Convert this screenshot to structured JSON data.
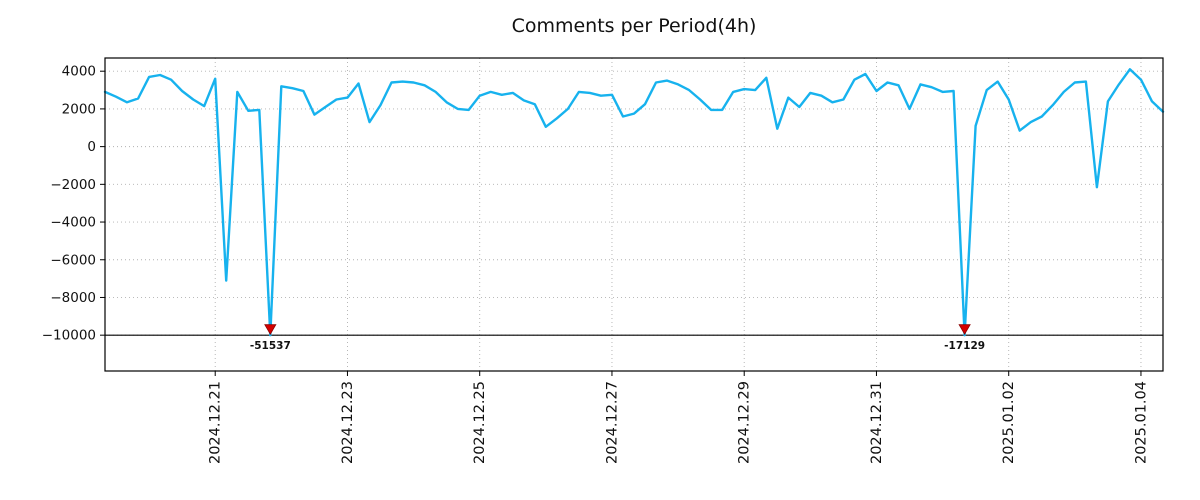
{
  "chart_data": {
    "type": "line",
    "title": "Comments per Period(4h)",
    "xlabel": "",
    "ylabel": "",
    "series_name": "comments-per-4h",
    "x_start": "2024-12-19 08:00",
    "x_interval_hours": 4,
    "values": [
      2900,
      2650,
      2350,
      2550,
      3700,
      3800,
      3550,
      2950,
      2500,
      2150,
      3600,
      -7100,
      2900,
      1900,
      1950,
      -51537,
      3200,
      3100,
      2950,
      1700,
      2100,
      2500,
      2600,
      3350,
      1300,
      2200,
      3400,
      3450,
      3400,
      3250,
      2900,
      2350,
      2000,
      1950,
      2700,
      2900,
      2750,
      2850,
      2450,
      2250,
      1050,
      1500,
      2000,
      2900,
      2850,
      2700,
      2750,
      1600,
      1750,
      2250,
      3400,
      3500,
      3300,
      3000,
      2500,
      1950,
      1950,
      2900,
      3050,
      3000,
      3650,
      950,
      2600,
      2100,
      2850,
      2700,
      2350,
      2500,
      3550,
      3850,
      2950,
      3400,
      3250,
      2000,
      3300,
      3150,
      2900,
      2950,
      -17129,
      1100,
      3000,
      3450,
      2500,
      850,
      1300,
      1600,
      2200,
      2900,
      3400,
      3450,
      -2150,
      2400,
      3300,
      4100,
      3550,
      2400,
      1850
    ],
    "ylim": [
      -11900,
      4700
    ],
    "yticks": [
      4000,
      2000,
      0,
      -2000,
      -4000,
      -6000,
      -8000,
      -10000
    ],
    "xticks": [
      {
        "label": "2024.12.21",
        "index": 10
      },
      {
        "label": "2024.12.23",
        "index": 22
      },
      {
        "label": "2024.12.25",
        "index": 34
      },
      {
        "label": "2024.12.27",
        "index": 46
      },
      {
        "label": "2024.12.29",
        "index": 58
      },
      {
        "label": "2024.12.31",
        "index": 70
      },
      {
        "label": "2025.01.02",
        "index": 82
      },
      {
        "label": "2025.01.04",
        "index": 94
      }
    ],
    "clip_value": -10000,
    "grid": "dotted",
    "legend": "none",
    "line_color": "#17b2ee",
    "annotation_text_color": "#0d9fd8",
    "annotation_marker_color": "#d40000",
    "annotations": [
      {
        "label": "-51537",
        "value": -51537,
        "index": 15,
        "marker": "red-triangle-down-icon"
      },
      {
        "label": "-17129",
        "value": -17129,
        "index": 78,
        "marker": "red-triangle-down-icon"
      }
    ]
  }
}
